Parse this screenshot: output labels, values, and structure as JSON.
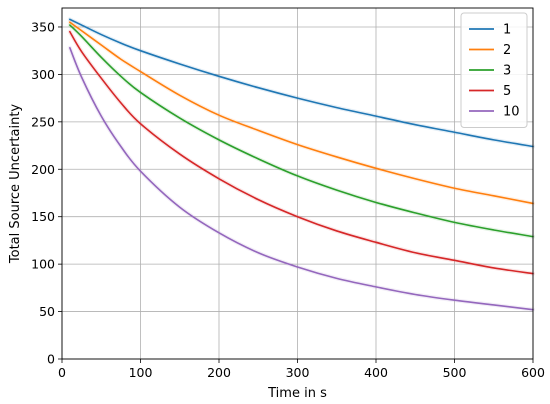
{
  "chart_data": {
    "type": "line",
    "title": "",
    "xlabel": "Time in s",
    "ylabel": "Total Source Uncertainty",
    "xlim": [
      0,
      600
    ],
    "ylim": [
      0,
      370
    ],
    "xticks": [
      0,
      100,
      200,
      300,
      400,
      500,
      600
    ],
    "yticks": [
      0,
      50,
      100,
      150,
      200,
      250,
      300,
      350
    ],
    "grid": true,
    "legend_position": "top-right",
    "x": [
      10,
      25,
      50,
      75,
      100,
      150,
      200,
      250,
      300,
      350,
      400,
      450,
      500,
      550,
      600
    ],
    "series": [
      {
        "name": "1",
        "color": "#1f77b4",
        "values": [
          358,
          352,
          342,
          333,
          325,
          311,
          298,
          286,
          275,
          265,
          256,
          247,
          239,
          231,
          224
        ]
      },
      {
        "name": "2",
        "color": "#ff7f0e",
        "values": [
          355,
          346,
          331,
          316,
          303,
          278,
          257,
          241,
          226,
          213,
          201,
          190,
          180,
          172,
          164
        ]
      },
      {
        "name": "3",
        "color": "#2ca02c",
        "values": [
          352,
          340,
          318,
          298,
          281,
          254,
          231,
          211,
          193,
          178,
          165,
          154,
          144,
          136,
          129
        ]
      },
      {
        "name": "5",
        "color": "#d62728",
        "values": [
          345,
          324,
          296,
          270,
          248,
          216,
          190,
          168,
          150,
          135,
          123,
          112,
          104,
          96,
          90
        ]
      },
      {
        "name": "10",
        "color": "#9467bd",
        "values": [
          328,
          297,
          256,
          224,
          198,
          160,
          133,
          112,
          97,
          85,
          76,
          68,
          62,
          57,
          52
        ]
      }
    ]
  }
}
